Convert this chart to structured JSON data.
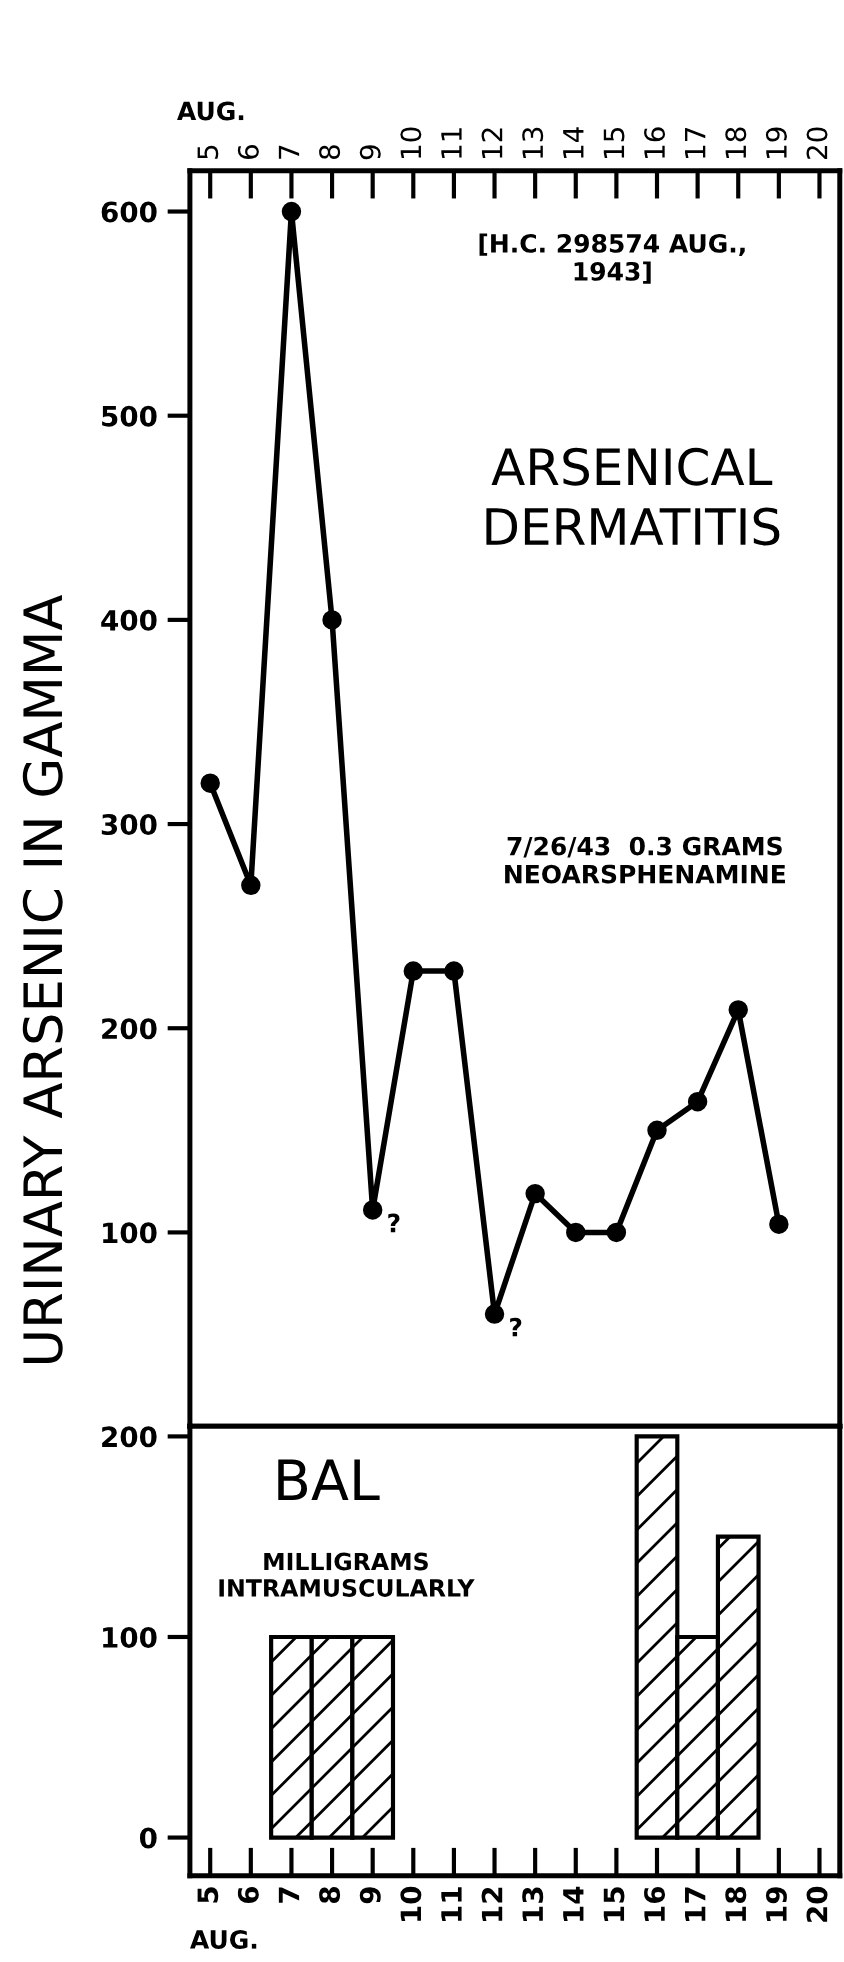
{
  "chart_data": [
    {
      "type": "line",
      "title": "ARSENICAL\nDERMATITIS",
      "xlabel": "AUG.",
      "ylabel": "URINARY ARSENIC IN GAMMA",
      "x": [
        5,
        6,
        7,
        8,
        9,
        10,
        11,
        12,
        13,
        14,
        15,
        16,
        17,
        18,
        19
      ],
      "series": [
        {
          "color": "#000000",
          "values": [
            320,
            270,
            600,
            400,
            111,
            228,
            228,
            60,
            119,
            100,
            100,
            150,
            164,
            209,
            104
          ]
        }
      ],
      "xlim": [
        4.5,
        20.5
      ],
      "xticks": [
        5,
        6,
        7,
        8,
        9,
        10,
        11,
        12,
        13,
        14,
        15,
        16,
        17,
        18,
        19,
        20
      ],
      "ylim": [
        5,
        620
      ],
      "yticks": [
        100,
        200,
        300,
        400,
        500,
        600
      ],
      "marker": "circle",
      "line_style": "solid",
      "grid": false,
      "legend": false,
      "annotations": [
        "[H.C. 298574 AUG.,\n1943]",
        "7/26/43  0.3 GRAMS\nNEOARSPHENAMINE",
        {
          "text": "?",
          "x": 9,
          "y": 111
        },
        {
          "text": "?",
          "x": 12,
          "y": 60
        }
      ]
    },
    {
      "type": "bar",
      "title": "BAL",
      "subtitle": "MILLIGRAMS\nINTRAMUSCULARLY",
      "xlabel": "AUG.",
      "x": [
        7,
        8,
        9,
        16,
        17,
        18
      ],
      "values": [
        100,
        100,
        100,
        200,
        100,
        150
      ],
      "color": "#000000",
      "xlim": [
        4.5,
        20.5
      ],
      "xticks": [
        5,
        6,
        7,
        8,
        9,
        10,
        11,
        12,
        13,
        14,
        15,
        16,
        17,
        18,
        19,
        20
      ],
      "ylim": [
        -19,
        205
      ],
      "yticks": [
        0,
        100,
        200
      ],
      "grid": false,
      "legend": false
    }
  ]
}
